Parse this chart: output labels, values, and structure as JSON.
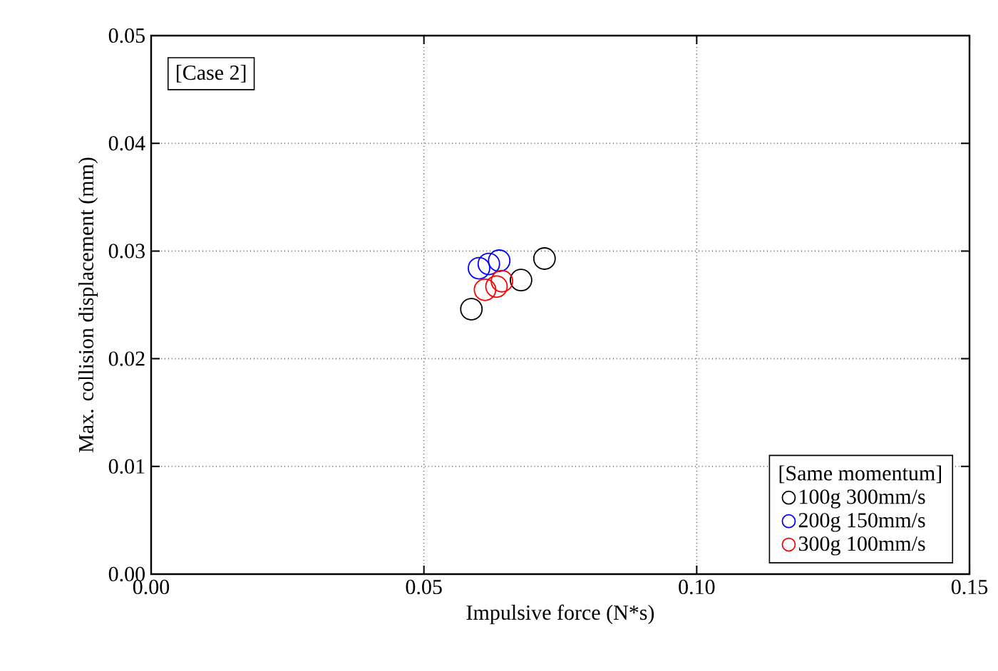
{
  "chart_data": {
    "type": "scatter",
    "xlabel": "Impulsive force (N*s)",
    "ylabel": "Max. collision displacement (mm)",
    "legend_title": "[Same momentum]",
    "annotations": [
      "[Case 2]"
    ],
    "xlim": [
      0,
      0.15
    ],
    "ylim": [
      0,
      0.05
    ],
    "xticks": [
      {
        "value": 0,
        "label": "0.00"
      },
      0.05,
      {
        "value": 0.1,
        "label": "0.10"
      },
      0.15
    ],
    "yticks": [
      {
        "value": 0,
        "label": "0.00"
      },
      0.01,
      0.02,
      0.03,
      0.04,
      0.05
    ],
    "grid": true,
    "legend": "bottom right",
    "marker": "circle",
    "series": [
      {
        "name": "100g 300mm/s",
        "color": "#000000",
        "x": [
          0.0587,
          0.0678,
          0.0721
        ],
        "values": [
          0.0246,
          0.0273,
          0.0293
        ]
      },
      {
        "name": "200g 150mm/s",
        "color": "#0000ff",
        "x": [
          0.0601,
          0.0619,
          0.0638
        ],
        "values": [
          0.0284,
          0.0288,
          0.0291
        ]
      },
      {
        "name": "300g 100mm/s",
        "color": "#ff0000",
        "x": [
          0.0612,
          0.0633,
          0.0643
        ],
        "values": [
          0.0264,
          0.0267,
          0.0272
        ]
      }
    ]
  }
}
